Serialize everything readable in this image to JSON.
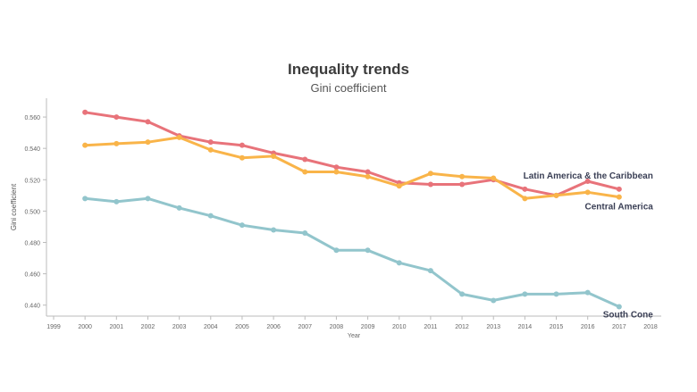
{
  "chart_data": {
    "type": "line",
    "title": "Inequality trends",
    "subtitle": "Gini coefficient",
    "xlabel": "Year",
    "ylabel": "Gini coefficient",
    "x_ticks": [
      "1999",
      "2000",
      "2001",
      "2002",
      "2003",
      "2004",
      "2005",
      "2006",
      "2007",
      "2008",
      "2009",
      "2010",
      "2011",
      "2012",
      "2013",
      "2014",
      "2015",
      "2016",
      "2017",
      "2018"
    ],
    "y_ticks": [
      "0.440",
      "0.460",
      "0.480",
      "0.500",
      "0.520",
      "0.540",
      "0.560"
    ],
    "ylim": [
      0.433,
      0.572
    ],
    "xlim": [
      1999,
      2018
    ],
    "x": [
      2000,
      2001,
      2002,
      2003,
      2004,
      2005,
      2006,
      2007,
      2008,
      2009,
      2010,
      2011,
      2012,
      2013,
      2014,
      2015,
      2016,
      2017
    ],
    "series": [
      {
        "name": "Latin America & the Caribbean",
        "color": "#e8737a",
        "values": [
          0.563,
          0.56,
          0.557,
          0.548,
          0.544,
          0.542,
          0.537,
          0.533,
          0.528,
          0.525,
          0.518,
          0.517,
          0.517,
          0.52,
          0.514,
          0.51,
          0.519,
          0.514
        ]
      },
      {
        "name": "Central America",
        "color": "#f9b449",
        "values": [
          0.542,
          0.543,
          0.544,
          0.547,
          0.539,
          0.534,
          0.535,
          0.525,
          0.525,
          0.522,
          0.516,
          0.524,
          0.522,
          0.521,
          0.508,
          0.51,
          0.512,
          0.509
        ]
      },
      {
        "name": "South Cone",
        "color": "#92c5cc",
        "values": [
          0.508,
          0.506,
          0.508,
          0.502,
          0.497,
          0.491,
          0.488,
          0.486,
          0.475,
          0.475,
          0.467,
          0.462,
          0.447,
          0.443,
          0.447,
          0.447,
          0.448,
          0.439
        ]
      }
    ],
    "grid": false,
    "legend": "end-of-line labels"
  }
}
